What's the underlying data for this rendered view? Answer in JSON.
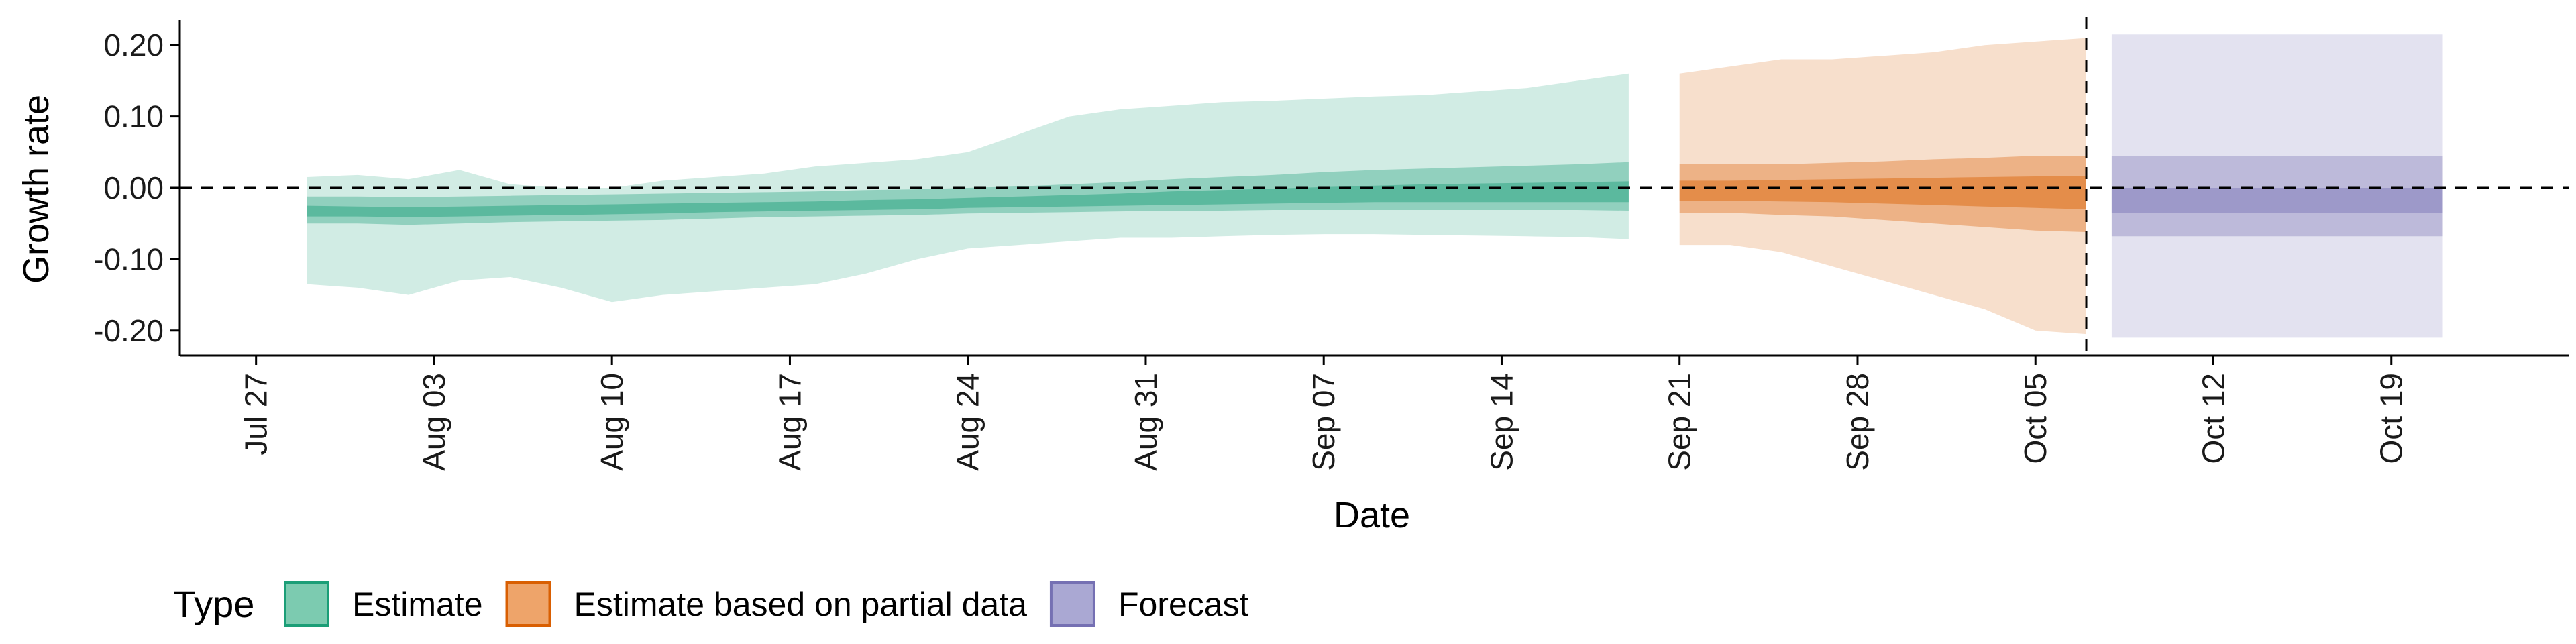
{
  "chart_data": {
    "type": "area",
    "title": "",
    "xlabel": "Date",
    "ylabel": "Growth rate",
    "ylim": [
      -0.235,
      0.235
    ],
    "xlim": [
      "2020-07-24",
      "2020-10-26"
    ],
    "grid": false,
    "y_ticks": [
      -0.2,
      -0.1,
      0.0,
      0.1,
      0.2
    ],
    "y_tick_labels": [
      "-0.20",
      "-0.10",
      "0.00",
      "0.10",
      "0.20"
    ],
    "x_ticks": [
      "2020-07-27",
      "2020-08-03",
      "2020-08-10",
      "2020-08-17",
      "2020-08-24",
      "2020-08-31",
      "2020-09-07",
      "2020-09-14",
      "2020-09-21",
      "2020-09-28",
      "2020-10-05",
      "2020-10-12",
      "2020-10-19"
    ],
    "x_tick_labels": [
      "Jul 27",
      "Aug 03",
      "Aug 10",
      "Aug 17",
      "Aug 24",
      "Aug 31",
      "Sep 07",
      "Sep 14",
      "Sep 21",
      "Sep 28",
      "Oct 05",
      "Oct 12",
      "Oct 19"
    ],
    "reference_lines": [
      {
        "axis": "y",
        "value": 0,
        "style": "dashed"
      },
      {
        "axis": "x",
        "value": "2020-10-07",
        "style": "dashed"
      }
    ],
    "legend": {
      "title": "Type",
      "placement": "bottom-left",
      "entries": [
        {
          "label": "Estimate",
          "fill": "#7ccbb0",
          "stroke": "#1b9e77"
        },
        {
          "label": "Estimate based on partial data",
          "fill": "#eea46a",
          "stroke": "#d95f02"
        },
        {
          "label": "Forecast",
          "fill": "#aaa8d3",
          "stroke": "#7570b3"
        }
      ]
    },
    "series": [
      {
        "type_label": "Estimate",
        "color": "#1b9e77",
        "x": [
          "2020-07-29",
          "2020-07-31",
          "2020-08-02",
          "2020-08-04",
          "2020-08-06",
          "2020-08-08",
          "2020-08-10",
          "2020-08-12",
          "2020-08-14",
          "2020-08-16",
          "2020-08-18",
          "2020-08-20",
          "2020-08-22",
          "2020-08-24",
          "2020-08-26",
          "2020-08-28",
          "2020-08-30",
          "2020-09-01",
          "2020-09-03",
          "2020-09-05",
          "2020-09-07",
          "2020-09-09",
          "2020-09-11",
          "2020-09-13",
          "2020-09-15",
          "2020-09-17",
          "2020-09-19"
        ],
        "lower90": [
          -0.135,
          -0.14,
          -0.15,
          -0.13,
          -0.125,
          -0.14,
          -0.16,
          -0.15,
          -0.145,
          -0.14,
          -0.135,
          -0.12,
          -0.1,
          -0.085,
          -0.08,
          -0.075,
          -0.07,
          -0.07,
          -0.068,
          -0.066,
          -0.065,
          -0.065,
          -0.066,
          -0.067,
          -0.068,
          -0.069,
          -0.072
        ],
        "upper90": [
          0.015,
          0.018,
          0.012,
          0.025,
          0.005,
          0.0,
          0.0,
          0.01,
          0.015,
          0.02,
          0.03,
          0.035,
          0.04,
          0.05,
          0.075,
          0.1,
          0.11,
          0.115,
          0.12,
          0.122,
          0.125,
          0.128,
          0.13,
          0.135,
          0.14,
          0.15,
          0.16
        ],
        "lower50": [
          -0.05,
          -0.05,
          -0.052,
          -0.05,
          -0.048,
          -0.047,
          -0.046,
          -0.045,
          -0.043,
          -0.041,
          -0.04,
          -0.039,
          -0.038,
          -0.036,
          -0.035,
          -0.034,
          -0.033,
          -0.032,
          -0.032,
          -0.031,
          -0.031,
          -0.031,
          -0.031,
          -0.031,
          -0.031,
          -0.031,
          -0.032
        ],
        "upper50": [
          -0.012,
          -0.012,
          -0.013,
          -0.012,
          -0.011,
          -0.01,
          -0.009,
          -0.008,
          -0.007,
          -0.006,
          -0.005,
          -0.003,
          -0.002,
          0.0,
          0.002,
          0.005,
          0.008,
          0.012,
          0.015,
          0.018,
          0.022,
          0.025,
          0.027,
          0.029,
          0.031,
          0.033,
          0.036
        ],
        "lower20": [
          -0.04,
          -0.04,
          -0.041,
          -0.04,
          -0.039,
          -0.038,
          -0.037,
          -0.036,
          -0.034,
          -0.033,
          -0.032,
          -0.031,
          -0.03,
          -0.028,
          -0.027,
          -0.026,
          -0.025,
          -0.024,
          -0.023,
          -0.022,
          -0.021,
          -0.02,
          -0.02,
          -0.02,
          -0.02,
          -0.02,
          -0.02
        ],
        "upper20": [
          -0.025,
          -0.026,
          -0.027,
          -0.026,
          -0.025,
          -0.024,
          -0.023,
          -0.022,
          -0.021,
          -0.02,
          -0.019,
          -0.017,
          -0.016,
          -0.014,
          -0.012,
          -0.01,
          -0.008,
          -0.005,
          -0.003,
          -0.001,
          0.001,
          0.003,
          0.005,
          0.006,
          0.007,
          0.008,
          0.009
        ]
      },
      {
        "type_label": "Estimate based on partial data",
        "color": "#d95f02",
        "x": [
          "2020-09-21",
          "2020-09-23",
          "2020-09-25",
          "2020-09-27",
          "2020-09-29",
          "2020-10-01",
          "2020-10-03",
          "2020-10-05",
          "2020-10-07"
        ],
        "lower90": [
          -0.08,
          -0.08,
          -0.09,
          -0.11,
          -0.13,
          -0.15,
          -0.17,
          -0.2,
          -0.205
        ],
        "upper90": [
          0.16,
          0.17,
          0.18,
          0.18,
          0.185,
          0.19,
          0.2,
          0.205,
          0.21
        ],
        "lower50": [
          -0.035,
          -0.035,
          -0.038,
          -0.04,
          -0.045,
          -0.05,
          -0.055,
          -0.06,
          -0.062
        ],
        "upper50": [
          0.033,
          0.033,
          0.033,
          0.035,
          0.037,
          0.04,
          0.042,
          0.045,
          0.045
        ],
        "lower20": [
          -0.018,
          -0.018,
          -0.019,
          -0.02,
          -0.022,
          -0.024,
          -0.026,
          -0.028,
          -0.03
        ],
        "upper20": [
          0.01,
          0.01,
          0.011,
          0.012,
          0.013,
          0.014,
          0.015,
          0.016,
          0.016
        ]
      },
      {
        "type_label": "Forecast",
        "color": "#7570b3",
        "x": [
          "2020-10-08",
          "2020-10-21"
        ],
        "lower90": [
          -0.21,
          -0.21
        ],
        "upper90": [
          0.215,
          0.215
        ],
        "lower50": [
          -0.068,
          -0.068
        ],
        "upper50": [
          0.045,
          0.045
        ],
        "lower20": [
          -0.035,
          -0.035
        ],
        "upper20": [
          0.0,
          0.0
        ]
      }
    ]
  }
}
